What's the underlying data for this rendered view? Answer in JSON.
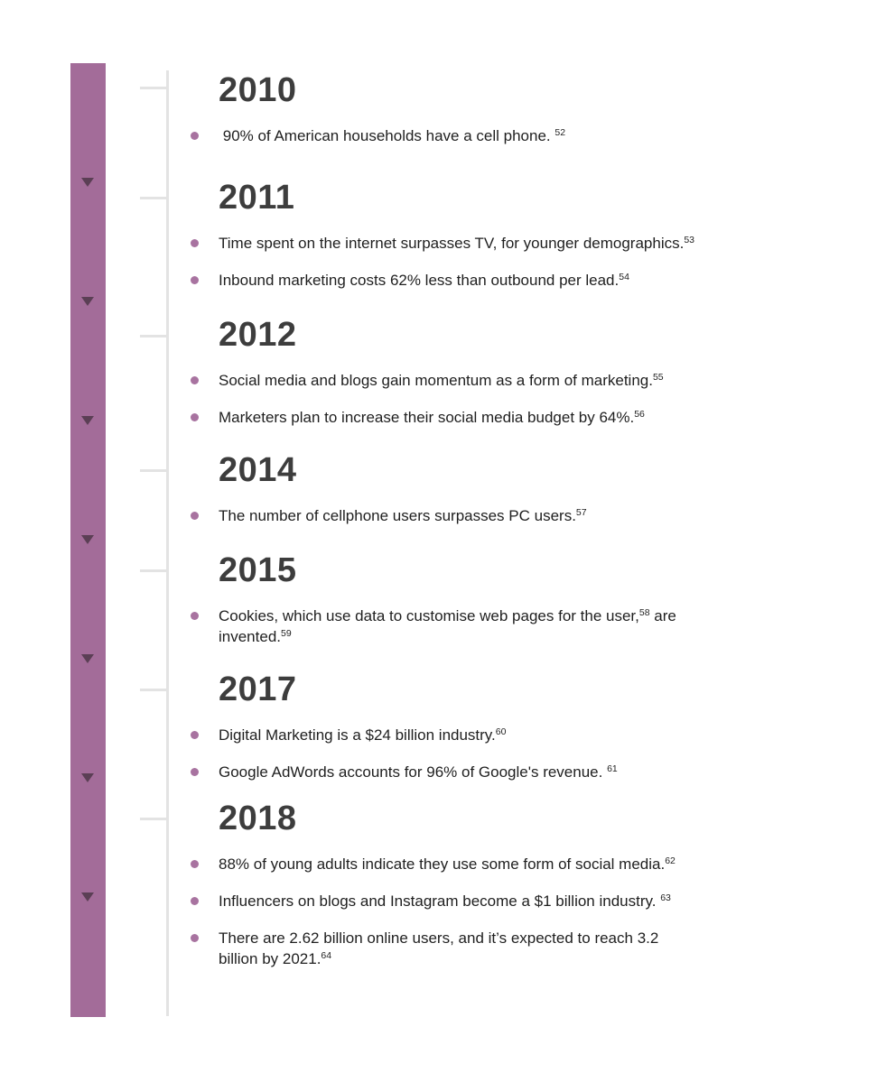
{
  "colors": {
    "bar": "#a36c99",
    "triangle": "#5b3f55",
    "dot": "#a873a0",
    "line": "#e3e3e3",
    "heading": "#3d3d3d",
    "body": "#1f1f1f",
    "background": "#ffffff"
  },
  "timeline": {
    "triangle_icon": "triangle-down-icon",
    "triangle_count": 7,
    "sections": [
      {
        "year": "2010",
        "bullets": [
          {
            "segments": [
              {
                "t": "text",
                "v": " 90% of American households have a cell phone. "
              },
              {
                "t": "sup",
                "v": "52"
              }
            ]
          }
        ]
      },
      {
        "year": "2011",
        "bullets": [
          {
            "segments": [
              {
                "t": "text",
                "v": "Time spent on the internet surpasses TV, for younger demographics."
              },
              {
                "t": "sup",
                "v": "53"
              }
            ]
          },
          {
            "segments": [
              {
                "t": "text",
                "v": "Inbound marketing costs 62% less than outbound per lead."
              },
              {
                "t": "sup",
                "v": "54"
              }
            ]
          }
        ]
      },
      {
        "year": "2012",
        "bullets": [
          {
            "segments": [
              {
                "t": "text",
                "v": "Social media and blogs gain momentum as a form of marketing."
              },
              {
                "t": "sup",
                "v": "55"
              }
            ]
          },
          {
            "segments": [
              {
                "t": "text",
                "v": "Marketers plan to increase their social media budget by 64%."
              },
              {
                "t": "sup",
                "v": "56"
              }
            ]
          }
        ]
      },
      {
        "year": "2014",
        "bullets": [
          {
            "segments": [
              {
                "t": "text",
                "v": "The number of cellphone users surpasses PC users."
              },
              {
                "t": "sup",
                "v": "57"
              }
            ]
          }
        ]
      },
      {
        "year": "2015",
        "bullets": [
          {
            "segments": [
              {
                "t": "text",
                "v": "Cookies, which use data to customise web pages for the user,"
              },
              {
                "t": "sup",
                "v": "58"
              },
              {
                "t": "text",
                "v": " are"
              },
              {
                "t": "br"
              },
              {
                "t": "text",
                "v": "invented."
              },
              {
                "t": "sup",
                "v": "59"
              }
            ]
          }
        ]
      },
      {
        "year": "2017",
        "bullets": [
          {
            "segments": [
              {
                "t": "text",
                "v": "Digital Marketing is a $24 billion industry."
              },
              {
                "t": "sup",
                "v": "60"
              }
            ]
          },
          {
            "segments": [
              {
                "t": "text",
                "v": "Google AdWords accounts for 96% of Google's revenue. "
              },
              {
                "t": "sup",
                "v": "61"
              }
            ]
          }
        ]
      },
      {
        "year": "2018",
        "bullets": [
          {
            "segments": [
              {
                "t": "text",
                "v": "88% of young adults indicate they use some form of social media."
              },
              {
                "t": "sup",
                "v": "62"
              }
            ]
          },
          {
            "segments": [
              {
                "t": "text",
                "v": "Influencers on blogs and Instagram become a $1 billion industry. "
              },
              {
                "t": "sup",
                "v": "63"
              }
            ]
          },
          {
            "segments": [
              {
                "t": "text",
                "v": "There are 2.62 billion online users, and it’s expected to reach 3.2"
              },
              {
                "t": "br"
              },
              {
                "t": "text",
                "v": "billion by 2021."
              },
              {
                "t": "sup",
                "v": "64"
              }
            ]
          }
        ]
      }
    ]
  }
}
